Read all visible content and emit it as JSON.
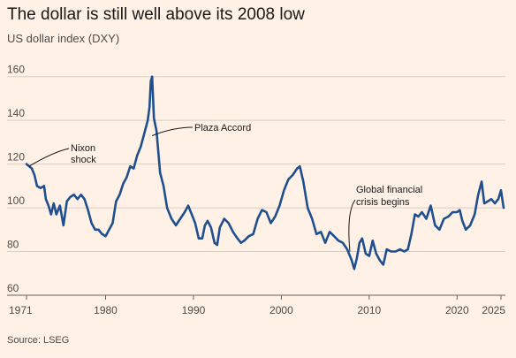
{
  "header": {
    "title": "The dollar is still well above its 2008 low",
    "subtitle": "US dollar index (DXY)"
  },
  "footer": {
    "source": "Source: LSEG"
  },
  "colors": {
    "background": "#fff1e5",
    "line": "#1f4f8f",
    "grid": "#d9cfc7",
    "axis": "#66605c"
  },
  "chart_data": {
    "type": "line",
    "title": "The dollar is still well above its 2008 low",
    "subtitle": "US dollar index (DXY)",
    "xlabel": "",
    "ylabel": "",
    "xlim": [
      1971,
      2025.5
    ],
    "ylim": [
      60,
      170
    ],
    "y_ticks": [
      60,
      80,
      100,
      120,
      140,
      160
    ],
    "x_ticks": [
      1971,
      1980,
      1990,
      2000,
      2010,
      2020,
      2025
    ],
    "grid": true,
    "series": [
      {
        "name": "",
        "x": [
          1971.0,
          1971.3,
          1971.6,
          1971.9,
          1972.2,
          1972.6,
          1973.0,
          1973.2,
          1973.5,
          1973.8,
          1974.1,
          1974.4,
          1974.8,
          1975.2,
          1975.6,
          1976.0,
          1976.4,
          1976.8,
          1977.2,
          1977.6,
          1978.0,
          1978.4,
          1978.8,
          1979.2,
          1979.6,
          1980.0,
          1980.4,
          1980.8,
          1981.2,
          1981.6,
          1982.0,
          1982.4,
          1982.8,
          1983.2,
          1983.6,
          1984.0,
          1984.4,
          1984.8,
          1985.0,
          1985.15,
          1985.3,
          1985.5,
          1985.8,
          1986.2,
          1986.6,
          1987.0,
          1987.5,
          1988.0,
          1988.5,
          1989.0,
          1989.4,
          1989.8,
          1990.2,
          1990.6,
          1991.0,
          1991.3,
          1991.6,
          1992.0,
          1992.4,
          1992.7,
          1993.0,
          1993.5,
          1994.0,
          1994.5,
          1995.0,
          1995.4,
          1995.8,
          1996.3,
          1996.8,
          1997.3,
          1997.8,
          1998.3,
          1998.8,
          1999.3,
          1999.8,
          2000.3,
          2000.8,
          2001.3,
          2001.8,
          2002.1,
          2002.5,
          2003.0,
          2003.5,
          2004.0,
          2004.5,
          2005.0,
          2005.5,
          2006.0,
          2006.5,
          2007.0,
          2007.5,
          2008.0,
          2008.3,
          2008.6,
          2008.9,
          2009.2,
          2009.6,
          2010.0,
          2010.4,
          2010.8,
          2011.2,
          2011.6,
          2012.0,
          2012.5,
          2013.0,
          2013.5,
          2014.0,
          2014.4,
          2014.8,
          2015.2,
          2015.6,
          2016.0,
          2016.5,
          2017.0,
          2017.5,
          2018.0,
          2018.5,
          2019.0,
          2019.5,
          2020.0,
          2020.3,
          2020.6,
          2021.0,
          2021.5,
          2022.0,
          2022.4,
          2022.8,
          2023.1,
          2023.5,
          2023.9,
          2024.3,
          2024.7,
          2025.0,
          2025.3
        ],
        "values": [
          120,
          119,
          118,
          115,
          110,
          109,
          110,
          104,
          101,
          97,
          102,
          97,
          101,
          92,
          103,
          105,
          106,
          104,
          106,
          104,
          99,
          93,
          90,
          90,
          88,
          87,
          90,
          93,
          103,
          106,
          111,
          114,
          119,
          118,
          124,
          128,
          134,
          140,
          146,
          158,
          160,
          141,
          135,
          116,
          110,
          100,
          95,
          92,
          95,
          98,
          101,
          97,
          93,
          86,
          86,
          92,
          94,
          91,
          84,
          83,
          91,
          95,
          93,
          89,
          86,
          84,
          85,
          87,
          88,
          95,
          99,
          98,
          93,
          96,
          101,
          108,
          113,
          115,
          118,
          119,
          112,
          100,
          95,
          88,
          89,
          84,
          89,
          87,
          85,
          84,
          81,
          76,
          72,
          77,
          84,
          86,
          79,
          78,
          85,
          79,
          76,
          74,
          81,
          80,
          80,
          81,
          80,
          81,
          88,
          97,
          96,
          98,
          95,
          101,
          92,
          90,
          95,
          96,
          98,
          98,
          99,
          94,
          90,
          92,
          97,
          106,
          112,
          102,
          103,
          104,
          102,
          104,
          108,
          100
        ]
      }
    ],
    "annotations": [
      {
        "lines": [
          "Nixon",
          "shock"
        ],
        "x": 1971.3,
        "y": 119
      },
      {
        "lines": [
          "Plaza Accord"
        ],
        "x": 1985.3,
        "y": 133
      },
      {
        "lines": [
          "Global financial",
          "crisis begins"
        ],
        "x": 2007.8,
        "y": 80
      }
    ]
  }
}
